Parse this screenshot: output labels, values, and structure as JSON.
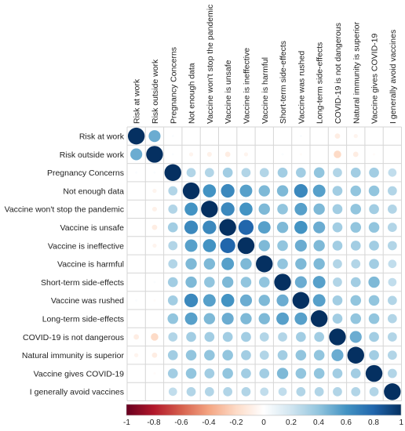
{
  "chart_data": {
    "type": "heatmap",
    "subtype": "correlation-circles",
    "variables": [
      "Risk at work",
      "Risk outside work",
      "Pregnancy Concerns",
      "Not enough data",
      "Vaccine won't stop the pandemic",
      "Vaccine is unsafe",
      "Vaccine is ineffective",
      "Vaccine is harmful",
      "Short-term side-effects",
      "Vaccine was rushed",
      "Long-term side-effects",
      "COVID-19 is not dangerous",
      "Natural immunity is superior",
      "Vaccine gives COVID-19",
      "I generally avoid vaccines"
    ],
    "matrix": [
      [
        1.0,
        0.5,
        0.02,
        0.0,
        0.0,
        0.0,
        0.0,
        0.0,
        0.0,
        0.02,
        0.0,
        -0.1,
        -0.06,
        0.0,
        0.0
      ],
      [
        0.5,
        1.0,
        0.02,
        -0.06,
        -0.08,
        -0.1,
        -0.06,
        0.0,
        0.02,
        -0.02,
        0.0,
        -0.2,
        -0.1,
        -0.02,
        0.0
      ],
      [
        0.02,
        0.02,
        1.0,
        0.3,
        0.3,
        0.35,
        0.3,
        0.3,
        0.35,
        0.35,
        0.4,
        0.3,
        0.35,
        0.35,
        0.25
      ],
      [
        0.0,
        -0.06,
        0.3,
        1.0,
        0.6,
        0.65,
        0.55,
        0.45,
        0.45,
        0.65,
        0.55,
        0.35,
        0.4,
        0.4,
        0.3
      ],
      [
        0.0,
        -0.08,
        0.3,
        0.6,
        1.0,
        0.65,
        0.6,
        0.45,
        0.4,
        0.55,
        0.45,
        0.35,
        0.4,
        0.35,
        0.3
      ],
      [
        0.0,
        -0.1,
        0.35,
        0.65,
        0.65,
        1.0,
        0.8,
        0.55,
        0.45,
        0.6,
        0.5,
        0.35,
        0.4,
        0.4,
        0.3
      ],
      [
        0.0,
        -0.06,
        0.3,
        0.55,
        0.6,
        0.8,
        1.0,
        0.45,
        0.4,
        0.5,
        0.45,
        0.35,
        0.35,
        0.35,
        0.3
      ],
      [
        0.0,
        0.0,
        0.3,
        0.45,
        0.45,
        0.55,
        0.45,
        1.0,
        0.4,
        0.45,
        0.45,
        0.3,
        0.3,
        0.35,
        0.25
      ],
      [
        0.0,
        0.02,
        0.35,
        0.45,
        0.4,
        0.45,
        0.4,
        0.4,
        1.0,
        0.5,
        0.55,
        0.3,
        0.35,
        0.45,
        0.25
      ],
      [
        0.02,
        -0.02,
        0.35,
        0.65,
        0.55,
        0.6,
        0.5,
        0.45,
        0.5,
        1.0,
        0.55,
        0.35,
        0.4,
        0.4,
        0.3
      ],
      [
        0.0,
        0.0,
        0.4,
        0.55,
        0.45,
        0.5,
        0.45,
        0.45,
        0.55,
        0.55,
        1.0,
        0.35,
        0.4,
        0.4,
        0.3
      ],
      [
        -0.1,
        -0.2,
        0.3,
        0.35,
        0.35,
        0.35,
        0.35,
        0.3,
        0.3,
        0.35,
        0.35,
        1.0,
        0.5,
        0.35,
        0.3
      ],
      [
        -0.06,
        -0.1,
        0.35,
        0.4,
        0.4,
        0.4,
        0.35,
        0.3,
        0.35,
        0.4,
        0.4,
        0.5,
        1.0,
        0.35,
        0.3
      ],
      [
        0.0,
        -0.02,
        0.35,
        0.4,
        0.35,
        0.4,
        0.35,
        0.35,
        0.45,
        0.4,
        0.4,
        0.35,
        0.35,
        1.0,
        0.3
      ],
      [
        0.0,
        0.0,
        0.25,
        0.3,
        0.3,
        0.3,
        0.3,
        0.25,
        0.25,
        0.3,
        0.3,
        0.3,
        0.3,
        0.3,
        1.0
      ]
    ],
    "color_scale": {
      "range": [
        -1,
        1
      ],
      "ticks": [
        "-1",
        "-0.8",
        "-0.6",
        "-0.4",
        "-0.2",
        "0",
        "0.2",
        "0.4",
        "0.6",
        "0.8",
        "1"
      ],
      "colors": [
        "#67001f",
        "#b2182b",
        "#d6604d",
        "#f4a582",
        "#fddbc7",
        "#ffffff",
        "#d1e5f0",
        "#92c5de",
        "#4393c3",
        "#2166ac",
        "#053061"
      ],
      "placement": "bottom"
    },
    "grid": true,
    "title": "",
    "xlabel": "",
    "ylabel": ""
  }
}
